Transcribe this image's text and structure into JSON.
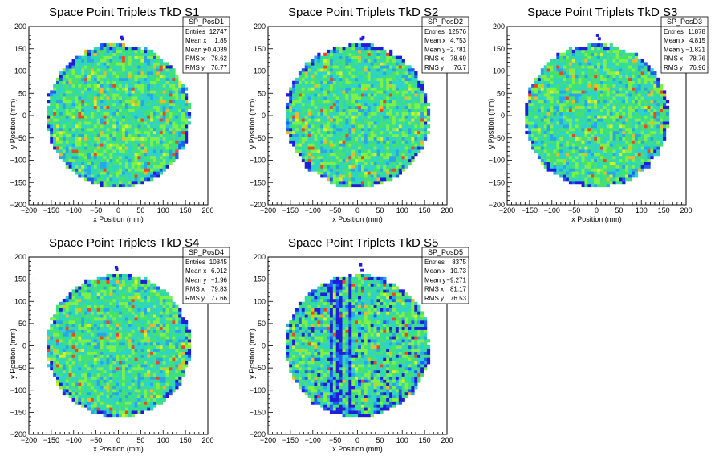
{
  "chart_data": [
    {
      "type": "heatmap",
      "title": "Space Point Triplets TkD S1",
      "xlabel": "x Position (mm)",
      "ylabel": "y Position (mm)",
      "xlim": [
        -200,
        200
      ],
      "ylim": [
        -200,
        200
      ],
      "xticks": [
        "−200",
        "−150",
        "−100",
        "−50",
        "0",
        "50",
        "100",
        "150",
        "200"
      ],
      "yticks": [
        "−200",
        "−150",
        "−100",
        "−50",
        "0",
        "50",
        "100",
        "150",
        "200"
      ],
      "stats": {
        "name": "SP_PosD1",
        "rows": [
          {
            "label": "Entries",
            "value": "12747"
          },
          {
            "label": "Mean x",
            "value": "1.85"
          },
          {
            "label": "Mean y",
            "value": "−0.4039"
          },
          {
            "label": "RMS x",
            "value": "78.62"
          },
          {
            "label": "RMS y",
            "value": "76.77"
          }
        ]
      },
      "disk_radius": 160,
      "bin_size": 7,
      "seed": 11,
      "blue_stripes": false
    },
    {
      "type": "heatmap",
      "title": "Space Point Triplets TkD S2",
      "xlabel": "x Position (mm)",
      "ylabel": "y Position (mm)",
      "xlim": [
        -200,
        200
      ],
      "ylim": [
        -200,
        200
      ],
      "xticks": [
        "−200",
        "−150",
        "−100",
        "−50",
        "0",
        "50",
        "100",
        "150",
        "200"
      ],
      "yticks": [
        "−200",
        "−150",
        "−100",
        "−50",
        "0",
        "50",
        "100",
        "150",
        "200"
      ],
      "stats": {
        "name": "SP_PosD2",
        "rows": [
          {
            "label": "Entries",
            "value": "12576"
          },
          {
            "label": "Mean x",
            "value": "4.753"
          },
          {
            "label": "Mean y",
            "value": "−2.781"
          },
          {
            "label": "RMS x",
            "value": "78.69"
          },
          {
            "label": "RMS y",
            "value": "76.7"
          }
        ]
      },
      "disk_radius": 160,
      "bin_size": 7,
      "seed": 23,
      "blue_stripes": false
    },
    {
      "type": "heatmap",
      "title": "Space Point Triplets TkD S3",
      "xlabel": "x Position (mm)",
      "ylabel": "y Position (mm)",
      "xlim": [
        -200,
        200
      ],
      "ylim": [
        -200,
        200
      ],
      "xticks": [
        "−200",
        "−150",
        "−100",
        "−50",
        "0",
        "50",
        "100",
        "150",
        "200"
      ],
      "yticks": [
        "−200",
        "−150",
        "−100",
        "−50",
        "0",
        "50",
        "100",
        "150",
        "200"
      ],
      "stats": {
        "name": "SP_PosD3",
        "rows": [
          {
            "label": "Entries",
            "value": "11878"
          },
          {
            "label": "Mean x",
            "value": "4.815"
          },
          {
            "label": "Mean y",
            "value": "−1.821"
          },
          {
            "label": "RMS x",
            "value": "78.76"
          },
          {
            "label": "RMS y",
            "value": "76.96"
          }
        ]
      },
      "disk_radius": 160,
      "bin_size": 7,
      "seed": 37,
      "blue_stripes": false
    },
    {
      "type": "heatmap",
      "title": "Space Point Triplets TkD S4",
      "xlabel": "x Position (mm)",
      "ylabel": "y Position (mm)",
      "xlim": [
        -200,
        200
      ],
      "ylim": [
        -200,
        200
      ],
      "xticks": [
        "−200",
        "−150",
        "−100",
        "−50",
        "0",
        "50",
        "100",
        "150",
        "200"
      ],
      "yticks": [
        "−200",
        "−150",
        "−100",
        "−50",
        "0",
        "50",
        "100",
        "150",
        "200"
      ],
      "stats": {
        "name": "SP_PosD4",
        "rows": [
          {
            "label": "Entries",
            "value": "10845"
          },
          {
            "label": "Mean x",
            "value": "6.012"
          },
          {
            "label": "Mean y",
            "value": "−1.96"
          },
          {
            "label": "RMS x",
            "value": "79.83"
          },
          {
            "label": "RMS y",
            "value": "77.66"
          }
        ]
      },
      "disk_radius": 160,
      "bin_size": 7,
      "seed": 53,
      "blue_stripes": false
    },
    {
      "type": "heatmap",
      "title": "Space Point Triplets TkD S5",
      "xlabel": "x Position (mm)",
      "ylabel": "y Position (mm)",
      "xlim": [
        -200,
        200
      ],
      "ylim": [
        -200,
        200
      ],
      "xticks": [
        "−200",
        "−150",
        "−100",
        "−50",
        "0",
        "50",
        "100",
        "150",
        "200"
      ],
      "yticks": [
        "−200",
        "−150",
        "−100",
        "−50",
        "0",
        "50",
        "100",
        "150",
        "200"
      ],
      "stats": {
        "name": "SP_PosD5",
        "rows": [
          {
            "label": "Entries",
            "value": "8375"
          },
          {
            "label": "Mean x",
            "value": "10.73"
          },
          {
            "label": "Mean y",
            "value": "−9.271"
          },
          {
            "label": "RMS x",
            "value": "81.17"
          },
          {
            "label": "RMS y",
            "value": "76.53"
          }
        ]
      },
      "disk_radius": 160,
      "bin_size": 7,
      "seed": 71,
      "blue_stripes": true
    }
  ]
}
